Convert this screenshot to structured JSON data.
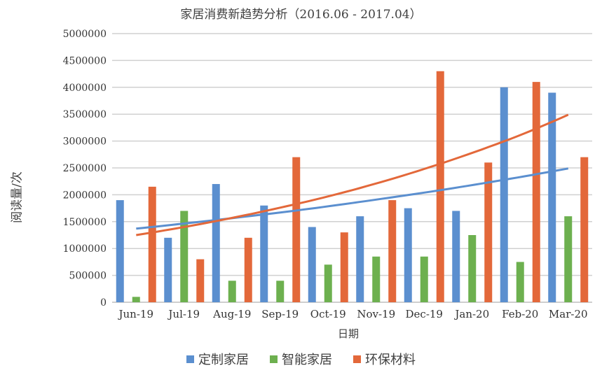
{
  "chart_data": {
    "type": "bar",
    "title": "家居消费新趋势分析（2016.06 - 2017.04）",
    "xlabel": "日期",
    "ylabel": "阅读量/次",
    "ylim": [
      0,
      5000000
    ],
    "yticks": [
      0,
      500000,
      1000000,
      1500000,
      2000000,
      2500000,
      3000000,
      3500000,
      4000000,
      4500000,
      5000000
    ],
    "grid": true,
    "legend_position": "bottom",
    "categories": [
      "Jun-19",
      "Jul-19",
      "Aug-19",
      "Sep-19",
      "Oct-19",
      "Nov-19",
      "Dec-19",
      "Jan-20",
      "Feb-20",
      "Mar-20"
    ],
    "series": [
      {
        "name": "定制家居",
        "color": "#5B8FCF",
        "values": [
          1900000,
          1200000,
          2200000,
          1800000,
          1400000,
          1600000,
          1750000,
          1700000,
          4000000,
          3900000
        ]
      },
      {
        "name": "智能家居",
        "color": "#6DB04F",
        "values": [
          100000,
          1700000,
          400000,
          400000,
          700000,
          850000,
          850000,
          1250000,
          750000,
          1600000
        ]
      },
      {
        "name": "环保材料",
        "color": "#E3683A",
        "values": [
          2150000,
          800000,
          1200000,
          2700000,
          1300000,
          1900000,
          4300000,
          2600000,
          4100000,
          2700000
        ]
      }
    ],
    "trendlines": [
      {
        "series": "定制家居",
        "color": "#5B8FCF",
        "type": "exponential",
        "x": [
          1,
          2,
          3,
          4,
          5,
          6,
          7,
          8,
          9,
          10
        ],
        "values": [
          1370000,
          1465000,
          1565000,
          1670000,
          1785000,
          1910000,
          2040000,
          2180000,
          2330000,
          2490000
        ]
      },
      {
        "series": "环保材料",
        "color": "#E3683A",
        "type": "exponential",
        "x": [
          1,
          2,
          3,
          4,
          5,
          6,
          7,
          8,
          9,
          10
        ],
        "values": [
          1250000,
          1400000,
          1570000,
          1760000,
          1970000,
          2210000,
          2480000,
          2780000,
          3110000,
          3490000
        ]
      }
    ]
  }
}
